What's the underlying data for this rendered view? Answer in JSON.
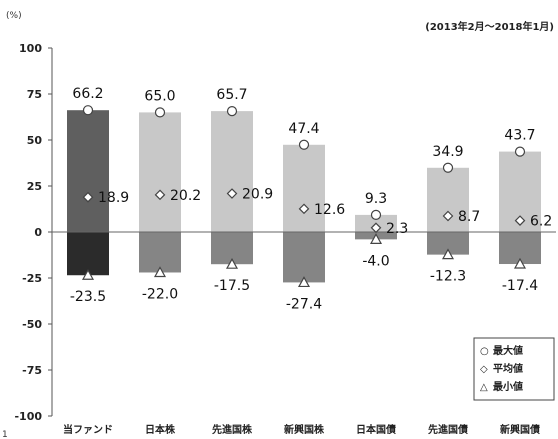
{
  "chart_data": {
    "type": "bar",
    "ylabel": "(%)",
    "period": "(2013年2月～2018年1月)",
    "ylim": [
      -100,
      100
    ],
    "yticks": [
      100,
      75,
      50,
      25,
      0,
      -25,
      -50,
      -75,
      -100
    ],
    "categories": [
      "当ファンド",
      "日本株",
      "先進国株",
      "新興国株",
      "日本国債",
      "先進国債",
      "新興国債"
    ],
    "max": [
      66.2,
      65.0,
      65.7,
      47.4,
      9.3,
      34.9,
      43.7
    ],
    "avg": [
      18.9,
      20.2,
      20.9,
      12.6,
      2.3,
      8.7,
      6.2
    ],
    "min": [
      -23.5,
      -22.0,
      -17.5,
      -27.4,
      -4.0,
      -12.3,
      -17.4
    ],
    "max_labels": [
      "66.2",
      "65.0",
      "65.7",
      "47.4",
      "9.3",
      "34.9",
      "43.7"
    ],
    "avg_labels": [
      "18.9",
      "20.2",
      "20.9",
      "12.6",
      "2.3",
      "8.7",
      "6.2"
    ],
    "min_labels": [
      "-23.5",
      "-22.0",
      "-17.5",
      "-27.4",
      "-4.0",
      "-12.3",
      "-17.4"
    ],
    "legend": {
      "position": "bottom-right",
      "items": [
        {
          "symbol": "○",
          "label": "最大値"
        },
        {
          "symbol": "◇",
          "label": "平均値"
        },
        {
          "symbol": "△",
          "label": "最小値"
        }
      ]
    },
    "colors": {
      "fund_pos": "#5f5f5f",
      "fund_neg": "#2b2b2b",
      "other_pos": "#c8c8c8",
      "other_neg": "#858585"
    },
    "grid": false
  },
  "footnote": "1"
}
